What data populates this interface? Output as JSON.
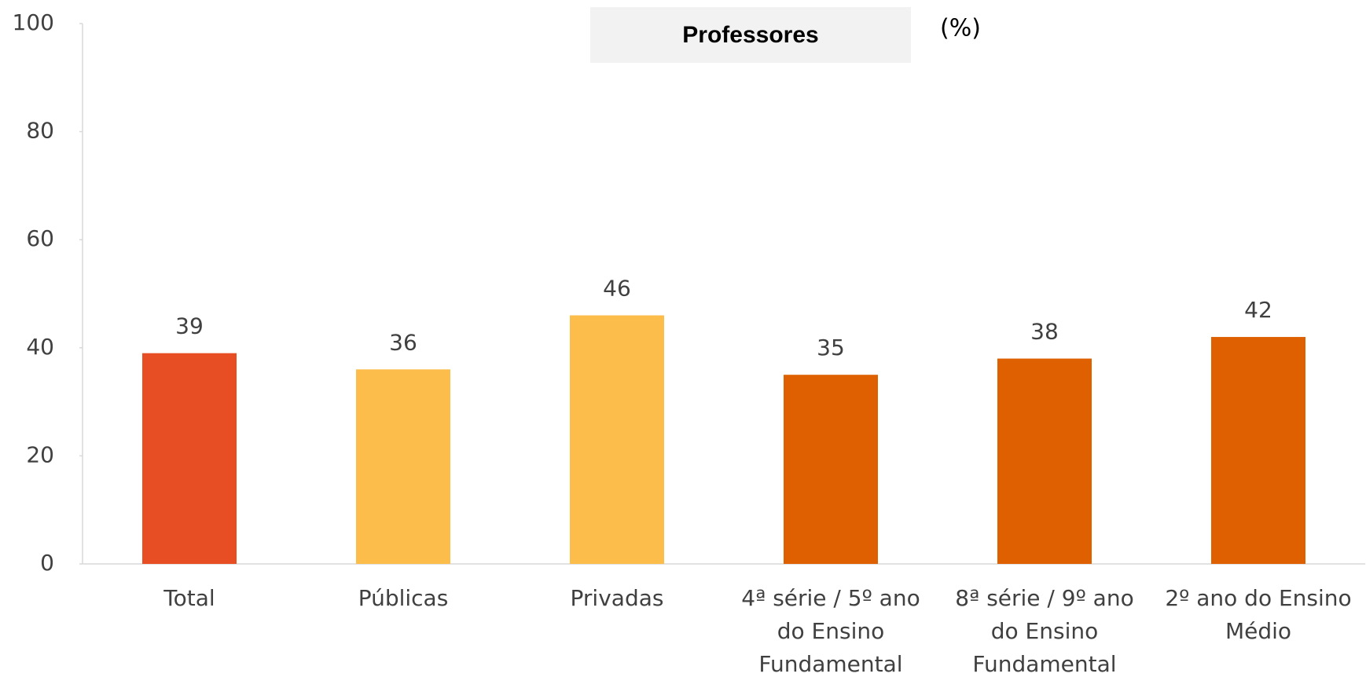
{
  "chart_data": {
    "type": "bar",
    "title": "Professores",
    "y_unit": "(%)",
    "categories": [
      [
        "Total"
      ],
      [
        "Públicas"
      ],
      [
        "Privadas"
      ],
      [
        "4ª série / 5º  ano",
        "do Ensino",
        "Fundamental"
      ],
      [
        "8ª série / 9º  ano",
        "do Ensino",
        "Fundamental"
      ],
      [
        "2º ano do Ensino",
        "Médio"
      ]
    ],
    "values": [
      39,
      36,
      46,
      35,
      38,
      42
    ],
    "colors": [
      "#e84e24",
      "#fdbd4a",
      "#fdbd4a",
      "#de6000",
      "#de6000",
      "#de6000"
    ],
    "ylim": [
      0,
      100
    ],
    "yticks": [
      0,
      20,
      40,
      60,
      80,
      100
    ],
    "grid": false
  }
}
